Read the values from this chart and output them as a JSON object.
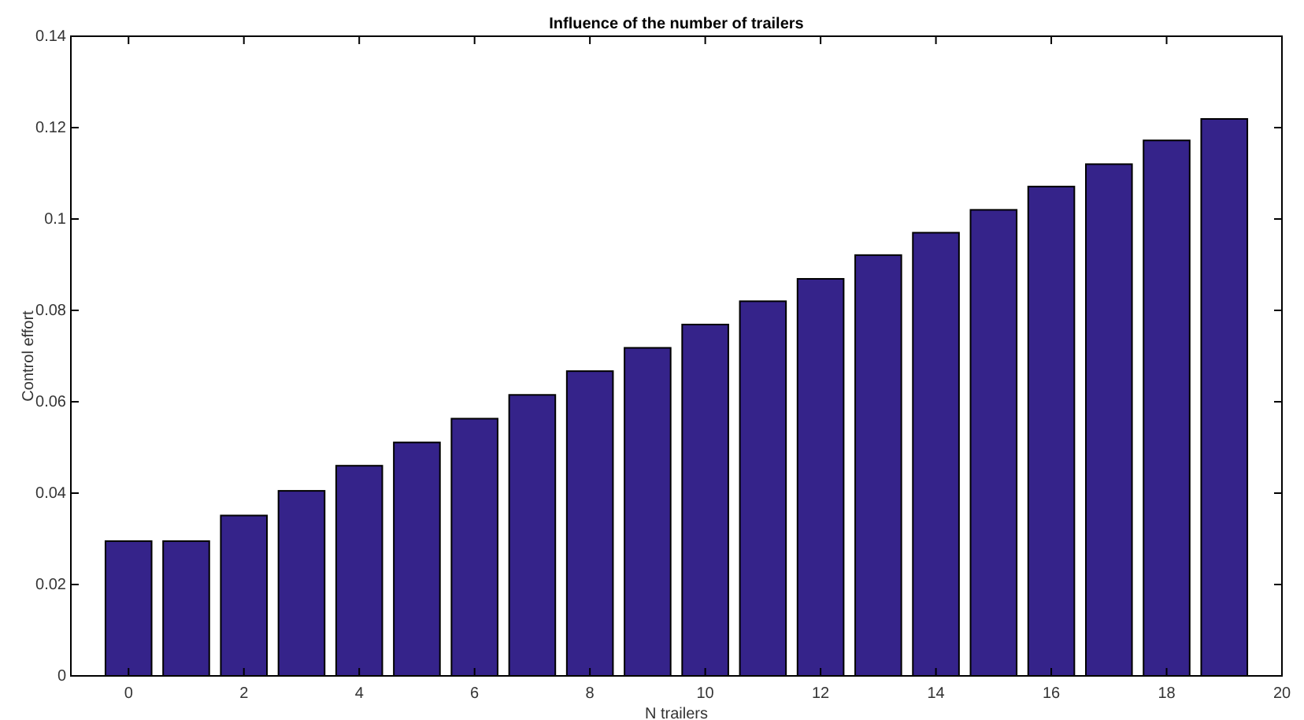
{
  "chart_data": {
    "type": "bar",
    "title": "Influence of the number of trailers",
    "xlabel": "N trailers",
    "ylabel": "Control effort",
    "x": [
      0,
      1,
      2,
      3,
      4,
      5,
      6,
      7,
      8,
      9,
      10,
      11,
      12,
      13,
      14,
      15,
      16,
      17,
      18,
      19
    ],
    "values": [
      0.0295,
      0.0295,
      0.0351,
      0.0405,
      0.046,
      0.0511,
      0.0563,
      0.0615,
      0.0667,
      0.0718,
      0.0769,
      0.082,
      0.0869,
      0.0921,
      0.097,
      0.102,
      0.1071,
      0.112,
      0.1172,
      0.1219
    ],
    "color": "#35238a",
    "xlim": [
      -1,
      20
    ],
    "xticks": [
      0,
      2,
      4,
      6,
      8,
      10,
      12,
      14,
      16,
      18,
      20
    ],
    "ylim": [
      0,
      0.14
    ],
    "yticks": [
      0,
      0.02,
      0.04,
      0.06,
      0.08,
      0.1,
      0.12,
      0.14
    ],
    "grid": false
  }
}
